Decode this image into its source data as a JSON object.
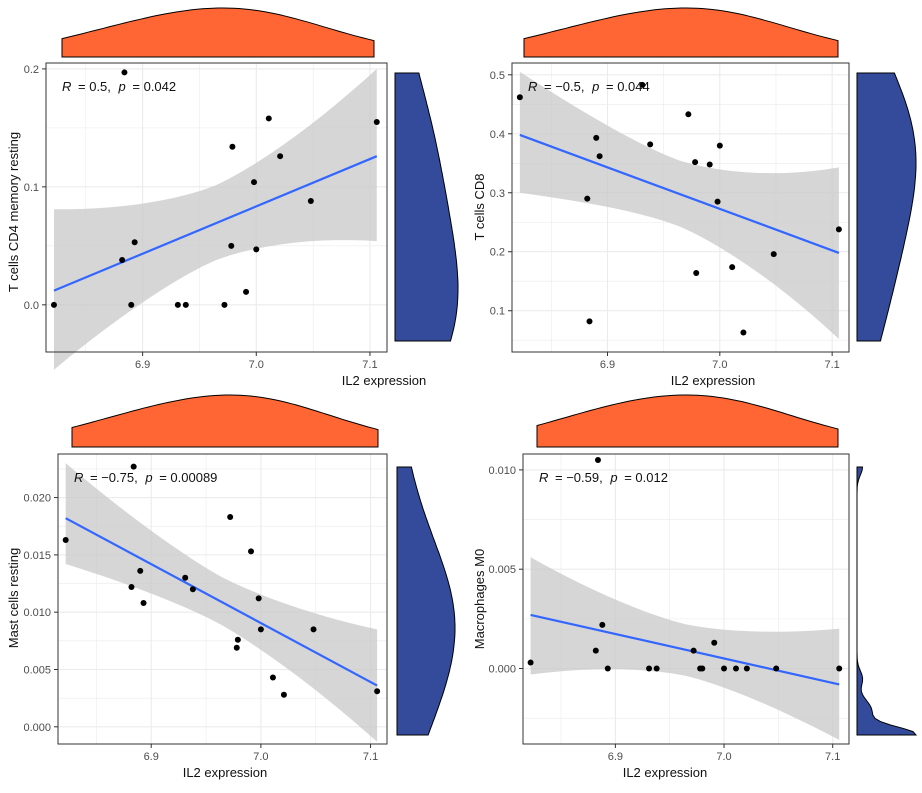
{
  "colors": {
    "x_density": "#FF6633",
    "y_density": "#344A9A",
    "regression_line": "#3366FF",
    "confidence_band": "#C8C8C8",
    "points": "#000000",
    "grid": "#EBEBEB",
    "panel_border": "#333333"
  },
  "chart_data": [
    {
      "type": "scatter",
      "xlabel": "IL2 expression",
      "ylabel": "T cells CD4 memory resting",
      "annotation": {
        "r_label": "R",
        "r_value": "= 0.5,",
        "p_label": "p",
        "p_value": "= 0.042"
      },
      "xlim": [
        6.815,
        7.115
      ],
      "ylim": [
        -0.04,
        0.205
      ],
      "xticks": [
        6.9,
        7.0,
        7.1
      ],
      "xtick_labels": [
        "6.9",
        "7.0",
        "7.1"
      ],
      "yticks": [
        0.0,
        0.1,
        0.2
      ],
      "ytick_labels": [
        "0.0",
        "0.1",
        "0.2"
      ],
      "x": [
        6.822,
        6.882,
        6.884,
        6.89,
        6.893,
        6.931,
        6.938,
        6.972,
        6.978,
        6.979,
        6.991,
        6.998,
        7.0,
        7.011,
        7.021,
        7.048,
        7.106
      ],
      "y": [
        0.0,
        0.038,
        0.197,
        0.0,
        0.053,
        0.0,
        0.0,
        0.0,
        0.05,
        0.134,
        0.011,
        0.104,
        0.047,
        0.158,
        0.126,
        0.088,
        0.155
      ],
      "fit": {
        "x": [
          6.822,
          7.106
        ],
        "y": [
          0.012,
          0.126
        ]
      },
      "ci_lower_y": [
        -0.055,
        0.054
      ],
      "ci_upper_y": [
        0.081,
        0.2
      ]
    },
    {
      "type": "scatter",
      "xlabel": "IL2 expression",
      "ylabel": "T cells CD8",
      "annotation": {
        "r_label": "R",
        "r_value": "= −0.5,",
        "p_label": "p",
        "p_value": "= 0.044"
      },
      "xlim": [
        6.815,
        7.115
      ],
      "ylim": [
        0.03,
        0.52
      ],
      "xticks": [
        6.9,
        7.0,
        7.1
      ],
      "xtick_labels": [
        "6.9",
        "7.0",
        "7.1"
      ],
      "yticks": [
        0.1,
        0.2,
        0.3,
        0.4,
        0.5
      ],
      "ytick_labels": [
        "0.1",
        "0.2",
        "0.3",
        "0.4",
        "0.5"
      ],
      "x": [
        6.822,
        6.882,
        6.884,
        6.89,
        6.893,
        6.931,
        6.938,
        6.972,
        6.978,
        6.979,
        6.991,
        6.998,
        7.0,
        7.011,
        7.021,
        7.048,
        7.106
      ],
      "y": [
        0.462,
        0.29,
        0.082,
        0.393,
        0.362,
        0.483,
        0.382,
        0.433,
        0.352,
        0.164,
        0.348,
        0.285,
        0.38,
        0.174,
        0.063,
        0.196,
        0.238
      ],
      "fit": {
        "x": [
          6.822,
          7.106
        ],
        "y": [
          0.398,
          0.198
        ]
      },
      "ci_lower_y": [
        0.3,
        0.052
      ],
      "ci_upper_y": [
        0.505,
        0.343
      ]
    },
    {
      "type": "scatter",
      "xlabel": "IL2 expression",
      "ylabel": "Mast cells resting",
      "annotation": {
        "r_label": "R",
        "r_value": "= −0.75,",
        "p_label": "p",
        "p_value": "= 0.00089"
      },
      "xlim": [
        6.815,
        7.115
      ],
      "ylim": [
        -0.0015,
        0.0238
      ],
      "xticks": [
        6.9,
        7.0,
        7.1
      ],
      "xtick_labels": [
        "6.9",
        "7.0",
        "7.1"
      ],
      "yticks": [
        0.0,
        0.005,
        0.01,
        0.015,
        0.02
      ],
      "ytick_labels": [
        "0.000",
        "0.005",
        "0.010",
        "0.015",
        "0.020"
      ],
      "x": [
        6.822,
        6.882,
        6.884,
        6.89,
        6.893,
        6.931,
        6.938,
        6.972,
        6.978,
        6.979,
        6.991,
        6.998,
        7.0,
        7.011,
        7.021,
        7.048,
        7.106
      ],
      "y": [
        0.0163,
        0.0122,
        0.0227,
        0.0136,
        0.0108,
        0.013,
        0.012,
        0.0183,
        0.0069,
        0.0076,
        0.0153,
        0.0112,
        0.0085,
        0.0043,
        0.0028,
        0.0085,
        0.0031
      ],
      "fit": {
        "x": [
          6.822,
          7.106
        ],
        "y": [
          0.0182,
          0.0036
        ]
      },
      "ci_lower_y": [
        0.0142,
        -0.0013
      ],
      "ci_upper_y": [
        0.023,
        0.0085
      ]
    },
    {
      "type": "scatter",
      "xlabel": "IL2 expression",
      "ylabel": "Macrophages M0",
      "annotation": {
        "r_label": "R",
        "r_value": "= −0.59,",
        "p_label": "p",
        "p_value": "= 0.012"
      },
      "xlim": [
        6.815,
        7.115
      ],
      "ylim": [
        -0.0038,
        0.0108
      ],
      "xticks": [
        6.9,
        7.0,
        7.1
      ],
      "xtick_labels": [
        "6.9",
        "7.0",
        "7.1"
      ],
      "yticks": [
        0.0,
        0.005,
        0.01
      ],
      "ytick_labels": [
        "0.000",
        "0.005",
        "0.010"
      ],
      "x": [
        6.822,
        6.882,
        6.884,
        6.888,
        6.893,
        6.931,
        6.938,
        6.972,
        6.978,
        6.98,
        6.991,
        7.0,
        7.011,
        7.021,
        7.048,
        7.106
      ],
      "y": [
        0.0003,
        0.0009,
        0.0105,
        0.0022,
        0.0,
        0.0,
        0.0,
        0.0009,
        0.0,
        0.0,
        0.0013,
        0.0,
        0.0,
        0.0,
        0.0,
        0.0
      ],
      "fit": {
        "x": [
          6.822,
          7.106
        ],
        "y": [
          0.0027,
          -0.0008
        ]
      },
      "ci_lower_y": [
        -0.0003,
        -0.0036
      ],
      "ci_upper_y": [
        0.0056,
        0.002
      ]
    }
  ]
}
